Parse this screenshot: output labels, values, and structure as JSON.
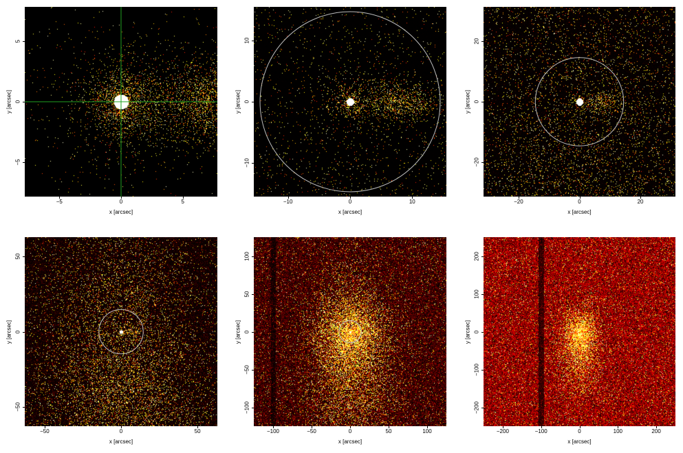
{
  "colors": {
    "background": "#ffffff",
    "image_bg": "#000000",
    "crosshair": "#1fa01f",
    "circle": "#bdbdbd"
  },
  "panels": [
    {
      "id": "p1",
      "xlabel": "x [arcsec]",
      "ylabel": "y [arcsec]",
      "xrange": [
        -7.8,
        7.8
      ],
      "yrange": [
        -7.8,
        7.8
      ],
      "xticks": [
        {
          "v": -5,
          "label": "−5"
        },
        {
          "v": 0,
          "label": "0"
        },
        {
          "v": 5,
          "label": "5"
        }
      ],
      "yticks": [
        {
          "v": -5,
          "label": "−5"
        },
        {
          "v": 0,
          "label": "0"
        },
        {
          "v": 5,
          "label": "5"
        }
      ],
      "marker": "crosshair",
      "density": 0.05,
      "level": 0.0
    },
    {
      "id": "p2",
      "xlabel": "x [arcsec]",
      "ylabel": "y [arcsec]",
      "xrange": [
        -15.5,
        15.5
      ],
      "yrange": [
        -15.5,
        15.5
      ],
      "xticks": [
        {
          "v": -10,
          "label": "−10"
        },
        {
          "v": 0,
          "label": "0"
        },
        {
          "v": 10,
          "label": "10"
        }
      ],
      "yticks": [
        {
          "v": -10,
          "label": "−10"
        },
        {
          "v": 0,
          "label": "0"
        },
        {
          "v": 10,
          "label": "10"
        }
      ],
      "marker": "circle",
      "circle_radius_arcsec": 14.5,
      "density": 0.06,
      "level": 0.02
    },
    {
      "id": "p3",
      "xlabel": "x [arcsec]",
      "ylabel": "y [arcsec]",
      "xrange": [
        -31.5,
        31.5
      ],
      "yrange": [
        -31.5,
        31.5
      ],
      "xticks": [
        {
          "v": -20,
          "label": "−20"
        },
        {
          "v": 0,
          "label": "0"
        },
        {
          "v": 20,
          "label": "20"
        }
      ],
      "yticks": [
        {
          "v": -20,
          "label": "−20"
        },
        {
          "v": 0,
          "label": "0"
        },
        {
          "v": 20,
          "label": "20"
        }
      ],
      "marker": "circle",
      "circle_radius_arcsec": 14.5,
      "density": 0.12,
      "level": 0.08
    },
    {
      "id": "p4",
      "xlabel": "x [arcsec]",
      "ylabel": "y [arcsec]",
      "xrange": [
        -63,
        63
      ],
      "yrange": [
        -63,
        63
      ],
      "xticks": [
        {
          "v": -50,
          "label": "−50"
        },
        {
          "v": 0,
          "label": "0"
        },
        {
          "v": 50,
          "label": "50"
        }
      ],
      "yticks": [
        {
          "v": -50,
          "label": "−50"
        },
        {
          "v": 0,
          "label": "0"
        },
        {
          "v": 50,
          "label": "50"
        }
      ],
      "marker": "circle",
      "circle_radius_arcsec": 14.5,
      "density": 0.3,
      "level": 0.2
    },
    {
      "id": "p5",
      "xlabel": "x [arcsec]",
      "ylabel": "y [arcsec]",
      "xrange": [
        -125,
        125
      ],
      "yrange": [
        -125,
        125
      ],
      "xticks": [
        {
          "v": -100,
          "label": "−100"
        },
        {
          "v": -50,
          "label": "−50"
        },
        {
          "v": 0,
          "label": "0"
        },
        {
          "v": 50,
          "label": "50"
        },
        {
          "v": 100,
          "label": "100"
        }
      ],
      "yticks": [
        {
          "v": -100,
          "label": "−100"
        },
        {
          "v": -50,
          "label": "−50"
        },
        {
          "v": 0,
          "label": "0"
        },
        {
          "v": 50,
          "label": "50"
        },
        {
          "v": 100,
          "label": "100"
        }
      ],
      "marker": "circle",
      "circle_radius_arcsec": 14.5,
      "density": 0.55,
      "level": 0.4
    },
    {
      "id": "p6",
      "xlabel": "x [arcsec]",
      "ylabel": "y [arcsec]",
      "xrange": [
        -250,
        250
      ],
      "yrange": [
        -250,
        250
      ],
      "xticks": [
        {
          "v": -200,
          "label": "−200"
        },
        {
          "v": -100,
          "label": "−100"
        },
        {
          "v": 0,
          "label": "0"
        },
        {
          "v": 100,
          "label": "100"
        },
        {
          "v": 200,
          "label": "200"
        }
      ],
      "yticks": [
        {
          "v": -200,
          "label": "−200"
        },
        {
          "v": -100,
          "label": "−100"
        },
        {
          "v": 0,
          "label": "0"
        },
        {
          "v": 100,
          "label": "100"
        },
        {
          "v": 200,
          "label": "200"
        }
      ],
      "marker": "none",
      "density": 0.85,
      "level": 0.65
    }
  ]
}
